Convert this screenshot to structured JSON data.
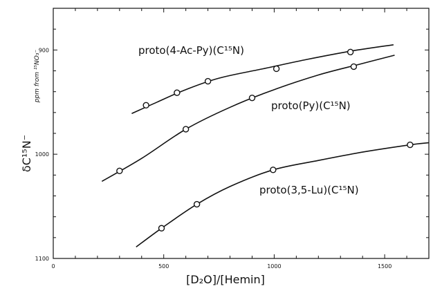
{
  "chart_data": {
    "type": "scatter",
    "title": "",
    "xlabel": "[D₂O]/[Hemin]",
    "ylabel": "δC¹⁵N⁻",
    "ylabel_unit": "ppm from ¹⁵NO₃⁻",
    "xlim": [
      0,
      1700
    ],
    "ylim": [
      1100,
      860
    ],
    "y_reversed": true,
    "grid": false,
    "x_ticks": [
      {
        "value": 0,
        "label": "0"
      },
      {
        "value": 500,
        "label": "500"
      },
      {
        "value": 1000,
        "label": "1000"
      },
      {
        "value": 1500,
        "label": "1500"
      }
    ],
    "y_ticks": [
      {
        "value": 900,
        "label": "900"
      },
      {
        "value": 1000,
        "label": "1000"
      },
      {
        "value": 1100,
        "label": "1100"
      }
    ],
    "series": [
      {
        "name": "proto(4-Ac-Py)(C¹⁵N)",
        "points": [
          {
            "x": 420,
            "y": 953
          },
          {
            "x": 560,
            "y": 941
          },
          {
            "x": 700,
            "y": 930
          },
          {
            "x": 1010,
            "y": 918
          },
          {
            "x": 1345,
            "y": 902
          }
        ],
        "curve": [
          {
            "x": 355,
            "y": 961
          },
          {
            "x": 470,
            "y": 950
          },
          {
            "x": 600,
            "y": 938
          },
          {
            "x": 750,
            "y": 927
          },
          {
            "x": 950,
            "y": 918
          },
          {
            "x": 1150,
            "y": 909
          },
          {
            "x": 1350,
            "y": 901
          },
          {
            "x": 1540,
            "y": 895
          }
        ]
      },
      {
        "name": "proto(Py)(C¹⁵N)",
        "points": [
          {
            "x": 300,
            "y": 1016
          },
          {
            "x": 600,
            "y": 976
          },
          {
            "x": 900,
            "y": 946
          },
          {
            "x": 1360,
            "y": 916
          }
        ],
        "curve": [
          {
            "x": 220,
            "y": 1026
          },
          {
            "x": 400,
            "y": 1004
          },
          {
            "x": 600,
            "y": 976
          },
          {
            "x": 800,
            "y": 955
          },
          {
            "x": 1000,
            "y": 938
          },
          {
            "x": 1200,
            "y": 924
          },
          {
            "x": 1380,
            "y": 914
          },
          {
            "x": 1545,
            "y": 905
          }
        ]
      },
      {
        "name": "proto(3,5-Lu)(C¹⁵N)",
        "points": [
          {
            "x": 490,
            "y": 1071
          },
          {
            "x": 650,
            "y": 1048
          },
          {
            "x": 995,
            "y": 1015
          },
          {
            "x": 1615,
            "y": 991
          }
        ],
        "curve": [
          {
            "x": 375,
            "y": 1089
          },
          {
            "x": 490,
            "y": 1071
          },
          {
            "x": 650,
            "y": 1048
          },
          {
            "x": 800,
            "y": 1031
          },
          {
            "x": 995,
            "y": 1015
          },
          {
            "x": 1200,
            "y": 1006
          },
          {
            "x": 1400,
            "y": 998
          },
          {
            "x": 1615,
            "y": 991
          },
          {
            "x": 1700,
            "y": 989
          }
        ]
      }
    ]
  }
}
